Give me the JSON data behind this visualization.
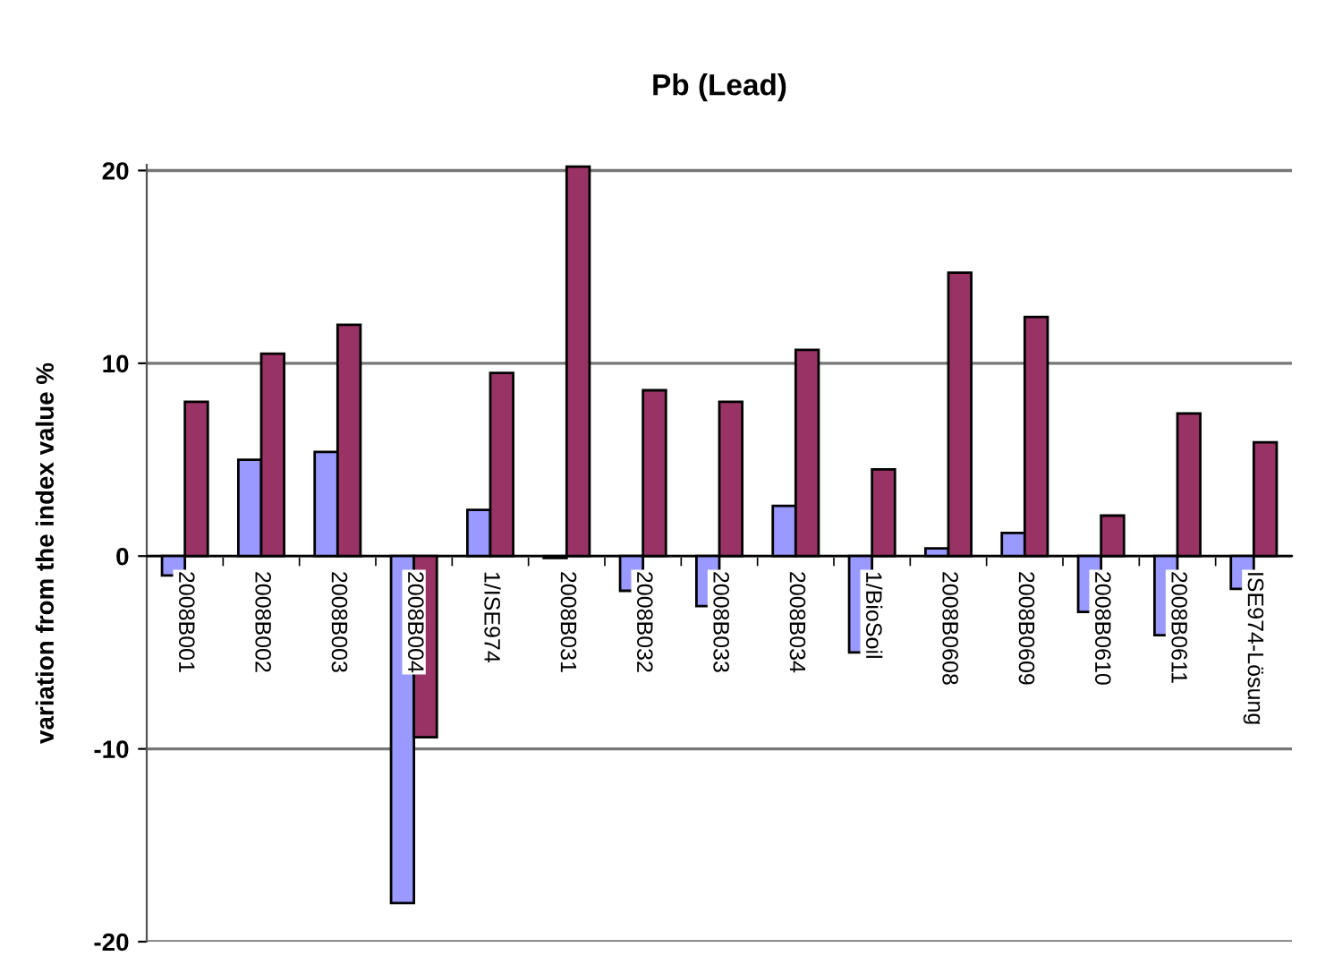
{
  "chart_data": {
    "type": "bar",
    "title": "Pb (Lead)",
    "ylabel": "variation from the index value %",
    "categories": [
      "2008B001",
      "2008B002",
      "2008B003",
      "2008B004",
      "1/ISE974",
      "2008B031",
      "2008B032",
      "2008B033",
      "2008B034",
      "1/BioSoil",
      "2008B0608",
      "2008B0609",
      "2008B0610",
      "2008B0611",
      "ISE974-Lösung"
    ],
    "series": [
      {
        "color": "#9999ff",
        "values": [
          -1.0,
          5.0,
          5.4,
          -18.0,
          2.4,
          -0.1,
          -1.8,
          -2.6,
          2.6,
          -5.0,
          0.4,
          1.2,
          -2.9,
          -4.1,
          -1.7
        ]
      },
      {
        "color": "#993366",
        "values": [
          8.0,
          10.5,
          12.0,
          -9.4,
          9.5,
          20.2,
          8.6,
          8.0,
          10.7,
          4.5,
          14.7,
          12.4,
          2.1,
          7.4,
          5.9
        ]
      }
    ],
    "ylim": [
      -20,
      20.3
    ],
    "yticks": [
      -20,
      -10,
      0,
      10,
      20
    ],
    "grid": "y"
  }
}
